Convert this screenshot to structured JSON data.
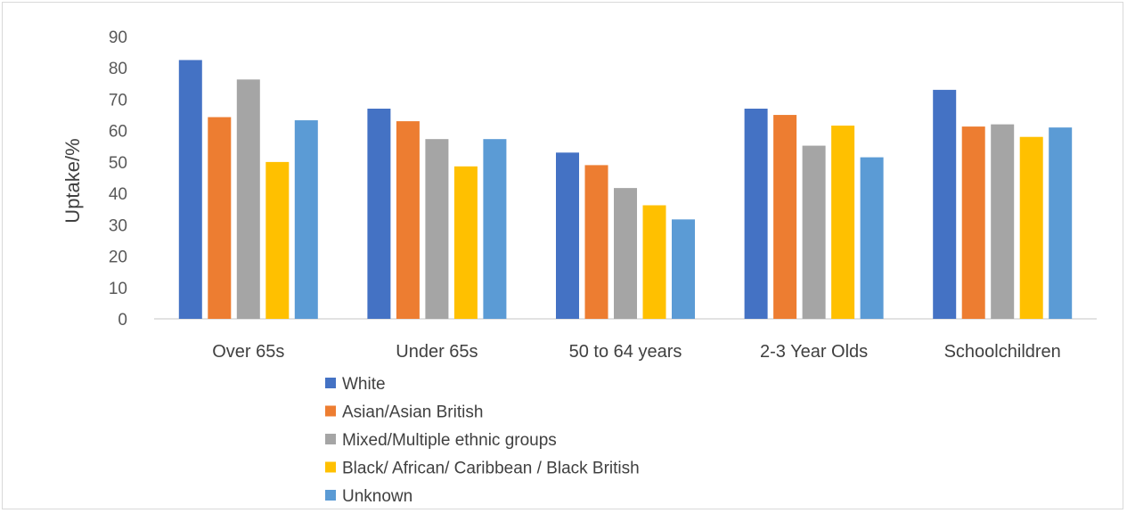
{
  "chart_data": {
    "type": "bar",
    "title": "",
    "xlabel": "",
    "ylabel": "Uptake/%",
    "ylim": [
      0,
      90
    ],
    "yticks": [
      0,
      10,
      20,
      30,
      40,
      50,
      60,
      70,
      80,
      90
    ],
    "grid": false,
    "legend_position": "bottom-left",
    "categories": [
      "Over 65s",
      "Under 65s",
      "50 to 64 years",
      "2-3 Year Olds",
      "Schoolchildren"
    ],
    "series": [
      {
        "name": "White",
        "color": "#4472c4",
        "values": [
          82.5,
          67,
          53,
          67,
          73
        ]
      },
      {
        "name": "Asian/Asian British",
        "color": "#ed7d31",
        "values": [
          64.3,
          63,
          49,
          65,
          61.3
        ]
      },
      {
        "name": "Mixed/Multiple ethnic groups",
        "color": "#a5a5a5",
        "values": [
          76.3,
          57.3,
          41.7,
          55.2,
          62
        ]
      },
      {
        "name": "Black/ African/ Caribbean / Black British",
        "color": "#ffc000",
        "values": [
          50,
          48.6,
          36.2,
          61.6,
          58
        ]
      },
      {
        "name": "Unknown",
        "color": "#5b9bd5",
        "values": [
          63.3,
          57.3,
          31.7,
          51.5,
          61
        ]
      }
    ]
  }
}
